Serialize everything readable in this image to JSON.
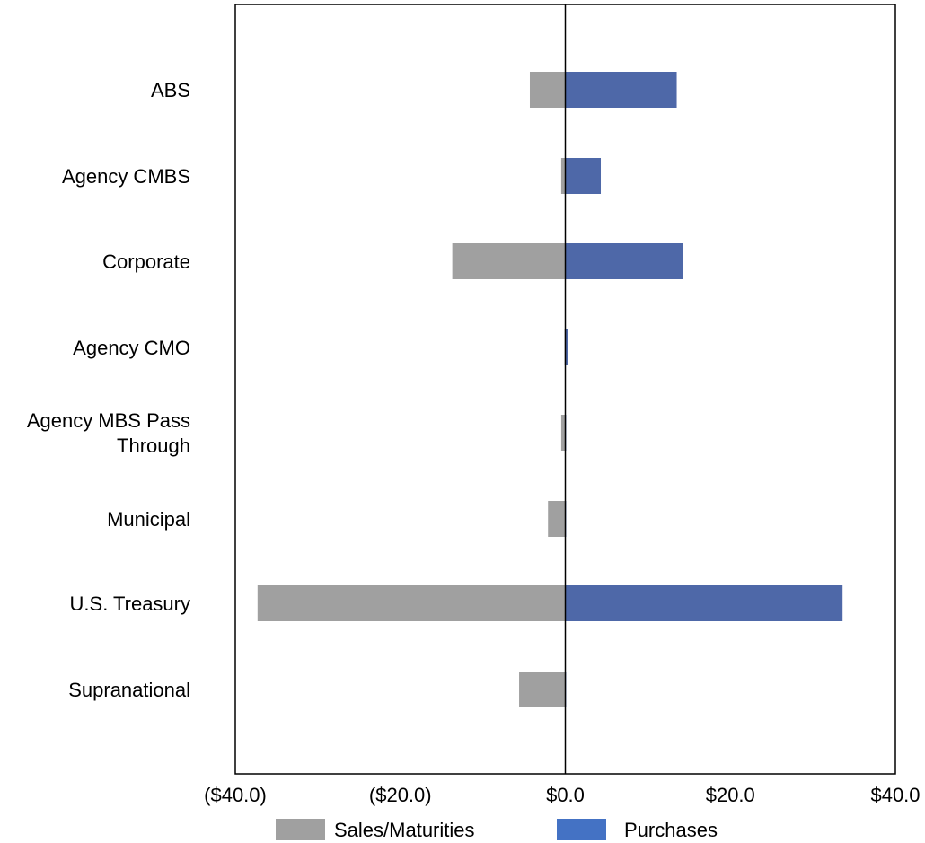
{
  "chart_data": {
    "type": "bar",
    "orientation": "horizontal",
    "categories": [
      [
        "ABS"
      ],
      [
        "Agency CMBS"
      ],
      [
        "Corporate"
      ],
      [
        "Agency CMO"
      ],
      [
        "Agency MBS Pass",
        "Through"
      ],
      [
        "Municipal"
      ],
      [
        "U.S. Treasury"
      ],
      [
        "Supranational"
      ]
    ],
    "series": [
      {
        "name": "Sales/Maturities",
        "color": "#a0a0a0",
        "values": [
          -4.3,
          -0.5,
          -13.7,
          -0.1,
          -0.5,
          -2.1,
          -37.3,
          -5.6
        ]
      },
      {
        "name": "Purchases",
        "color": "#4e68a8",
        "values": [
          13.5,
          4.3,
          14.3,
          0.3,
          0.1,
          0.1,
          33.6,
          0.1
        ]
      }
    ],
    "xlim": [
      -40,
      40
    ],
    "x_ticks": [
      -40,
      -20,
      0,
      20,
      40
    ],
    "x_tick_labels": [
      "($40.0)",
      "($20.0)",
      "$0.0",
      "$20.0",
      "$40.0"
    ],
    "grid": false,
    "legend_position": "bottom",
    "legend_colors": [
      "#a0a0a0",
      "#4472c4"
    ]
  }
}
